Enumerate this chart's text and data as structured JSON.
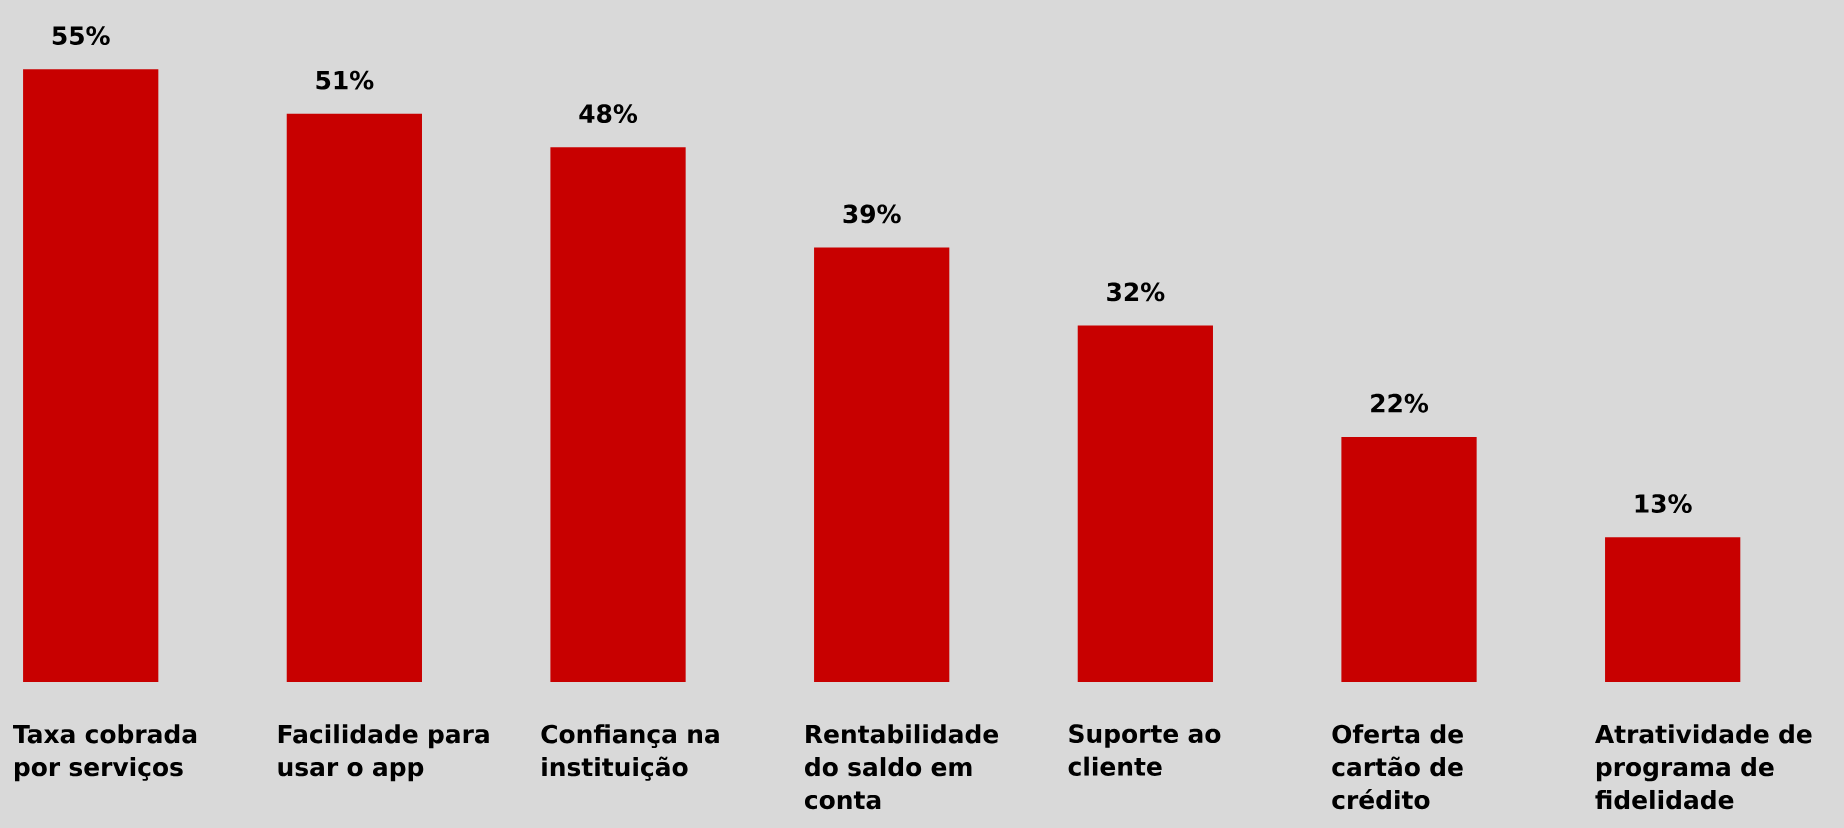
{
  "chart_data": {
    "type": "bar",
    "categories": [
      "Taxa cobrada por serviços",
      "Facilidade para usar o app",
      "Confiança na instituição",
      "Rentabilidade do saldo em conta",
      "Suporte ao cliente",
      "Oferta de cartão de crédito",
      "Atratividade de programa de fidelidade"
    ],
    "values": [
      55,
      51,
      48,
      39,
      32,
      22,
      13
    ],
    "value_labels": [
      "55%",
      "51%",
      "48%",
      "39%",
      "32%",
      "22%",
      "13%"
    ],
    "color": "#c80000"
  }
}
